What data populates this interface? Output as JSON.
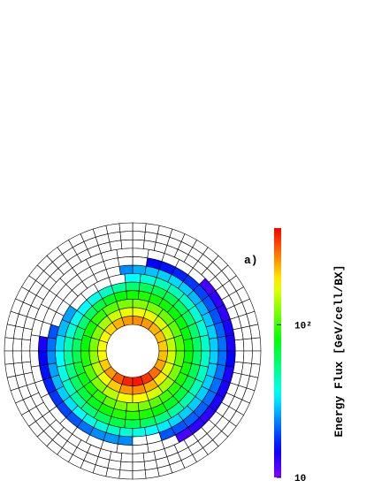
{
  "chart_data": {
    "type": "polar-heatmap",
    "annotation": "a)",
    "colorbar_label": "Energy Flux [GeV/cell/BX]",
    "clim": [
      10,
      430
    ],
    "log_scale": true,
    "cticks": [
      10,
      {
        "value": 100,
        "label": "10²"
      }
    ],
    "rings": [
      {
        "sectors": 20,
        "values": [
          220,
          230,
          240,
          260,
          270,
          260,
          240,
          210,
          190,
          180,
          190,
          220,
          260,
          320,
          380,
          400,
          360,
          300,
          250,
          230
        ]
      },
      {
        "sectors": 20,
        "values": [
          150,
          160,
          165,
          175,
          180,
          175,
          160,
          140,
          125,
          120,
          130,
          150,
          180,
          220,
          260,
          270,
          240,
          200,
          170,
          160
        ]
      },
      {
        "sectors": 20,
        "values": [
          105,
          110,
          115,
          120,
          125,
          120,
          110,
          95,
          85,
          80,
          90,
          105,
          125,
          150,
          180,
          185,
          165,
          140,
          120,
          110
        ]
      },
      {
        "sectors": 30,
        "values": [
          80,
          78,
          80,
          82,
          84,
          86,
          88,
          85,
          80,
          72,
          65,
          58,
          55,
          55,
          58,
          62,
          68,
          75,
          85,
          95,
          110,
          120,
          125,
          120,
          110,
          100,
          92,
          88,
          85,
          82
        ]
      },
      {
        "sectors": 30,
        "values": [
          58,
          56,
          58,
          60,
          62,
          62,
          60,
          55,
          48,
          42,
          38,
          35,
          36,
          40,
          44,
          48,
          52,
          58,
          66,
          74,
          84,
          90,
          92,
          88,
          80,
          72,
          66,
          62,
          60,
          58
        ]
      },
      {
        "sectors": 30,
        "values": [
          42,
          40,
          40,
          42,
          44,
          44,
          40,
          35,
          null,
          null,
          null,
          null,
          26,
          28,
          32,
          35,
          38,
          42,
          48,
          54,
          60,
          64,
          62,
          58,
          52,
          48,
          46,
          44,
          43,
          42
        ]
      },
      {
        "sectors": 40,
        "values": [
          30,
          30,
          29,
          28,
          28,
          30,
          31,
          30,
          29,
          27,
          24,
          null,
          null,
          null,
          null,
          null,
          null,
          null,
          20,
          22,
          24,
          26,
          28,
          30,
          32,
          35,
          38,
          40,
          42,
          40,
          38,
          35,
          33,
          31,
          30,
          30,
          30,
          30,
          30,
          30
        ]
      },
      {
        "sectors": 40,
        "values": [
          22,
          21,
          20,
          20,
          19,
          18,
          17,
          16,
          15,
          null,
          null,
          null,
          null,
          null,
          null,
          null,
          null,
          null,
          null,
          14,
          15,
          16,
          17,
          18,
          19,
          20,
          22,
          24,
          25,
          24,
          null,
          null,
          20,
          20,
          21,
          21,
          22,
          22,
          22,
          22
        ]
      },
      {
        "sectors": 40,
        "values": [
          14,
          14,
          13,
          13,
          12,
          null,
          null,
          null,
          null,
          null,
          null,
          null,
          null,
          null,
          null,
          null,
          null,
          null,
          null,
          null,
          null,
          null,
          null,
          null,
          null,
          null,
          null,
          null,
          null,
          null,
          null,
          null,
          null,
          12,
          13,
          13,
          14,
          14,
          14,
          15
        ]
      },
      {
        "sectors": 60
      },
      {
        "sectors": 60
      },
      {
        "sectors": 60
      }
    ]
  }
}
